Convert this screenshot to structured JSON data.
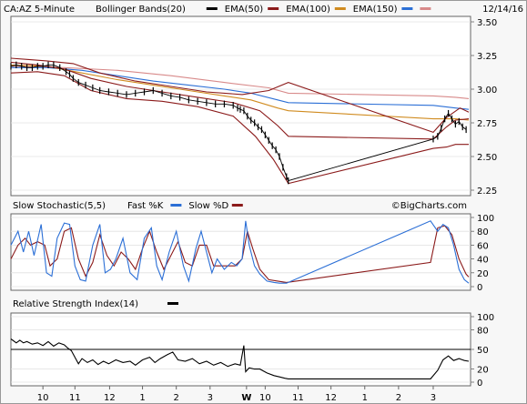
{
  "chart_data": [
    {
      "type": "candlestick",
      "header": {
        "symbol_label": "CA:AZ 5-Minute",
        "date": "12/14/16",
        "legend": [
          {
            "name": "Bollinger Bands(20)",
            "color": "#000000"
          },
          {
            "name": "EMA(50)",
            "color": "#8b1a1a"
          },
          {
            "name": "EMA(100)",
            "color": "#d08b1f"
          },
          {
            "name": "EMA(150)",
            "color": "#2b6fd6"
          },
          {
            "name": "",
            "color": "#d88a8a"
          }
        ]
      },
      "ylim": [
        2.25,
        3.5
      ],
      "yticks": [
        "3.50",
        "3.25",
        "3.00",
        "2.75",
        "2.50",
        "2.25"
      ],
      "ytick_values": [
        3.5,
        3.25,
        3.0,
        2.75,
        2.5,
        2.25
      ],
      "price_close": [
        [
          0,
          3.17
        ],
        [
          6,
          3.18
        ],
        [
          12,
          3.17
        ],
        [
          18,
          3.16
        ],
        [
          24,
          3.16
        ],
        [
          30,
          3.17
        ],
        [
          36,
          3.17
        ],
        [
          42,
          3.18
        ],
        [
          48,
          3.18
        ],
        [
          55,
          3.16
        ],
        [
          62,
          3.13
        ],
        [
          66,
          3.11
        ],
        [
          70,
          3.08
        ],
        [
          76,
          3.05
        ],
        [
          84,
          3.03
        ],
        [
          92,
          3.01
        ],
        [
          100,
          2.99
        ],
        [
          110,
          2.98
        ],
        [
          120,
          2.97
        ],
        [
          130,
          2.96
        ],
        [
          140,
          2.97
        ],
        [
          150,
          2.98
        ],
        [
          160,
          2.99
        ],
        [
          170,
          2.97
        ],
        [
          180,
          2.95
        ],
        [
          190,
          2.94
        ],
        [
          200,
          2.92
        ],
        [
          210,
          2.91
        ],
        [
          220,
          2.9
        ],
        [
          230,
          2.89
        ],
        [
          240,
          2.89
        ],
        [
          250,
          2.88
        ],
        [
          255,
          2.86
        ],
        [
          258,
          2.85
        ],
        [
          262,
          2.84
        ],
        [
          266,
          2.8
        ],
        [
          270,
          2.77
        ],
        [
          274,
          2.75
        ],
        [
          278,
          2.72
        ],
        [
          282,
          2.7
        ],
        [
          286,
          2.66
        ],
        [
          290,
          2.62
        ],
        [
          294,
          2.58
        ],
        [
          298,
          2.55
        ],
        [
          302,
          2.5
        ],
        [
          306,
          2.42
        ],
        [
          310,
          2.35
        ],
        [
          312,
          2.32
        ],
        [
          475,
          2.63
        ],
        [
          480,
          2.65
        ],
        [
          484,
          2.71
        ],
        [
          488,
          2.78
        ],
        [
          492,
          2.82
        ],
        [
          496,
          2.78
        ],
        [
          500,
          2.74
        ],
        [
          504,
          2.76
        ],
        [
          508,
          2.72
        ],
        [
          512,
          2.7
        ]
      ],
      "bollinger_upper": [
        [
          0,
          3.23
        ],
        [
          20,
          3.22
        ],
        [
          40,
          3.21
        ],
        [
          70,
          3.19
        ],
        [
          100,
          3.12
        ],
        [
          140,
          3.06
        ],
        [
          180,
          3.02
        ],
        [
          220,
          2.98
        ],
        [
          260,
          2.96
        ],
        [
          290,
          2.99
        ],
        [
          312,
          3.05
        ],
        [
          475,
          2.68
        ],
        [
          490,
          2.79
        ],
        [
          505,
          2.86
        ],
        [
          515,
          2.83
        ]
      ],
      "bollinger_lower": [
        [
          0,
          3.12
        ],
        [
          30,
          3.13
        ],
        [
          60,
          3.1
        ],
        [
          90,
          2.99
        ],
        [
          130,
          2.93
        ],
        [
          170,
          2.91
        ],
        [
          210,
          2.87
        ],
        [
          250,
          2.8
        ],
        [
          275,
          2.65
        ],
        [
          295,
          2.48
        ],
        [
          312,
          2.3
        ],
        [
          475,
          2.56
        ],
        [
          490,
          2.57
        ],
        [
          500,
          2.59
        ],
        [
          515,
          2.59
        ]
      ],
      "ema50": [
        [
          0,
          3.2
        ],
        [
          30,
          3.18
        ],
        [
          60,
          3.15
        ],
        [
          90,
          3.08
        ],
        [
          130,
          3.02
        ],
        [
          170,
          2.98
        ],
        [
          210,
          2.94
        ],
        [
          250,
          2.9
        ],
        [
          280,
          2.84
        ],
        [
          300,
          2.73
        ],
        [
          312,
          2.65
        ],
        [
          475,
          2.63
        ],
        [
          490,
          2.72
        ],
        [
          500,
          2.77
        ],
        [
          515,
          2.78
        ]
      ],
      "ema100": [
        [
          0,
          3.18
        ],
        [
          40,
          3.17
        ],
        [
          80,
          3.12
        ],
        [
          120,
          3.07
        ],
        [
          160,
          3.03
        ],
        [
          200,
          2.99
        ],
        [
          240,
          2.95
        ],
        [
          270,
          2.92
        ],
        [
          300,
          2.86
        ],
        [
          312,
          2.84
        ],
        [
          475,
          2.78
        ],
        [
          500,
          2.78
        ],
        [
          515,
          2.77
        ]
      ],
      "ema150": [
        [
          0,
          3.16
        ],
        [
          40,
          3.16
        ],
        [
          80,
          3.14
        ],
        [
          120,
          3.1
        ],
        [
          160,
          3.06
        ],
        [
          200,
          3.03
        ],
        [
          240,
          3.0
        ],
        [
          270,
          2.97
        ],
        [
          300,
          2.92
        ],
        [
          312,
          2.9
        ],
        [
          475,
          2.88
        ],
        [
          500,
          2.86
        ],
        [
          515,
          2.85
        ]
      ],
      "ema_pink": [
        [
          0,
          3.17
        ],
        [
          60,
          3.16
        ],
        [
          120,
          3.14
        ],
        [
          180,
          3.1
        ],
        [
          240,
          3.05
        ],
        [
          290,
          3.01
        ],
        [
          312,
          2.97
        ],
        [
          475,
          2.95
        ],
        [
          500,
          2.94
        ],
        [
          515,
          2.93
        ]
      ]
    },
    {
      "type": "line",
      "title": "Slow Stochastic(5,5)",
      "legend": [
        {
          "name": "Fast %K",
          "color": "#2b6fd6"
        },
        {
          "name": "Slow %D",
          "color": "#8b1a1a"
        }
      ],
      "watermark": "©BigCharts.com",
      "ylim": [
        0,
        100
      ],
      "yticks": [
        "100",
        "80",
        "60",
        "40",
        "20",
        "0"
      ],
      "ytick_values": [
        100,
        80,
        60,
        40,
        20,
        0
      ],
      "fast_k": [
        [
          0,
          60
        ],
        [
          8,
          80
        ],
        [
          14,
          50
        ],
        [
          20,
          80
        ],
        [
          26,
          45
        ],
        [
          34,
          90
        ],
        [
          40,
          20
        ],
        [
          46,
          15
        ],
        [
          52,
          70
        ],
        [
          60,
          92
        ],
        [
          66,
          90
        ],
        [
          72,
          30
        ],
        [
          78,
          10
        ],
        [
          84,
          8
        ],
        [
          92,
          60
        ],
        [
          100,
          90
        ],
        [
          106,
          20
        ],
        [
          112,
          25
        ],
        [
          118,
          40
        ],
        [
          126,
          70
        ],
        [
          134,
          20
        ],
        [
          142,
          10
        ],
        [
          150,
          70
        ],
        [
          158,
          85
        ],
        [
          164,
          30
        ],
        [
          170,
          10
        ],
        [
          178,
          50
        ],
        [
          186,
          80
        ],
        [
          194,
          30
        ],
        [
          200,
          8
        ],
        [
          208,
          55
        ],
        [
          214,
          80
        ],
        [
          220,
          50
        ],
        [
          226,
          20
        ],
        [
          232,
          40
        ],
        [
          240,
          25
        ],
        [
          248,
          35
        ],
        [
          254,
          30
        ],
        [
          260,
          40
        ],
        [
          264,
          95
        ],
        [
          268,
          60
        ],
        [
          274,
          30
        ],
        [
          280,
          18
        ],
        [
          288,
          8
        ],
        [
          296,
          6
        ],
        [
          302,
          5
        ],
        [
          310,
          5
        ],
        [
          472,
          95
        ],
        [
          480,
          80
        ],
        [
          486,
          90
        ],
        [
          492,
          85
        ],
        [
          498,
          60
        ],
        [
          504,
          25
        ],
        [
          510,
          10
        ],
        [
          515,
          5
        ]
      ],
      "slow_d": [
        [
          0,
          40
        ],
        [
          8,
          60
        ],
        [
          16,
          70
        ],
        [
          22,
          60
        ],
        [
          30,
          65
        ],
        [
          38,
          60
        ],
        [
          44,
          30
        ],
        [
          52,
          40
        ],
        [
          60,
          80
        ],
        [
          68,
          85
        ],
        [
          76,
          40
        ],
        [
          84,
          15
        ],
        [
          92,
          35
        ],
        [
          100,
          75
        ],
        [
          108,
          45
        ],
        [
          116,
          30
        ],
        [
          124,
          50
        ],
        [
          132,
          40
        ],
        [
          140,
          25
        ],
        [
          148,
          55
        ],
        [
          156,
          80
        ],
        [
          164,
          50
        ],
        [
          172,
          25
        ],
        [
          180,
          45
        ],
        [
          188,
          65
        ],
        [
          196,
          35
        ],
        [
          204,
          30
        ],
        [
          212,
          60
        ],
        [
          220,
          60
        ],
        [
          228,
          30
        ],
        [
          236,
          30
        ],
        [
          244,
          30
        ],
        [
          252,
          30
        ],
        [
          260,
          40
        ],
        [
          266,
          80
        ],
        [
          272,
          55
        ],
        [
          280,
          25
        ],
        [
          290,
          10
        ],
        [
          300,
          8
        ],
        [
          310,
          6
        ],
        [
          472,
          35
        ],
        [
          480,
          85
        ],
        [
          488,
          88
        ],
        [
          496,
          75
        ],
        [
          504,
          40
        ],
        [
          512,
          18
        ],
        [
          515,
          14
        ]
      ]
    },
    {
      "type": "line",
      "title": "Relative Strength Index(14)",
      "legend": [
        {
          "name": "",
          "color": "#000000"
        }
      ],
      "ylim": [
        0,
        100
      ],
      "yticks": [
        "100",
        "80",
        "50",
        "20",
        "0"
      ],
      "ytick_values": [
        100,
        80,
        50,
        20,
        0
      ],
      "reference_lines": [
        50
      ],
      "rsi": [
        [
          0,
          66
        ],
        [
          6,
          60
        ],
        [
          10,
          64
        ],
        [
          14,
          60
        ],
        [
          18,
          62
        ],
        [
          24,
          58
        ],
        [
          30,
          60
        ],
        [
          36,
          56
        ],
        [
          42,
          62
        ],
        [
          48,
          55
        ],
        [
          54,
          60
        ],
        [
          60,
          57
        ],
        [
          64,
          52
        ],
        [
          68,
          48
        ],
        [
          72,
          38
        ],
        [
          76,
          28
        ],
        [
          80,
          36
        ],
        [
          86,
          30
        ],
        [
          92,
          34
        ],
        [
          98,
          27
        ],
        [
          104,
          32
        ],
        [
          110,
          28
        ],
        [
          118,
          34
        ],
        [
          126,
          30
        ],
        [
          134,
          32
        ],
        [
          140,
          26
        ],
        [
          148,
          34
        ],
        [
          156,
          38
        ],
        [
          162,
          30
        ],
        [
          168,
          36
        ],
        [
          176,
          42
        ],
        [
          182,
          46
        ],
        [
          188,
          34
        ],
        [
          196,
          32
        ],
        [
          204,
          36
        ],
        [
          212,
          28
        ],
        [
          220,
          32
        ],
        [
          228,
          26
        ],
        [
          236,
          30
        ],
        [
          244,
          24
        ],
        [
          252,
          28
        ],
        [
          258,
          26
        ],
        [
          262,
          56
        ],
        [
          264,
          16
        ],
        [
          268,
          22
        ],
        [
          274,
          20
        ],
        [
          280,
          20
        ],
        [
          288,
          14
        ],
        [
          296,
          10
        ],
        [
          302,
          8
        ],
        [
          308,
          6
        ],
        [
          312,
          5
        ],
        [
          472,
          5
        ],
        [
          480,
          18
        ],
        [
          486,
          34
        ],
        [
          492,
          40
        ],
        [
          498,
          33
        ],
        [
          504,
          36
        ],
        [
          510,
          33
        ],
        [
          515,
          32
        ]
      ]
    },
    {
      "type": "x_axis",
      "labels": [
        {
          "text": "10",
          "pos": 36
        },
        {
          "text": "11",
          "pos": 72
        },
        {
          "text": "12",
          "pos": 111
        },
        {
          "text": "1",
          "pos": 148
        },
        {
          "text": "2",
          "pos": 186
        },
        {
          "text": "3",
          "pos": 224
        },
        {
          "text": "W",
          "pos": 265
        },
        {
          "text": "10",
          "pos": 286
        },
        {
          "text": "11",
          "pos": 323
        },
        {
          "text": "12",
          "pos": 360
        },
        {
          "text": "1",
          "pos": 398
        },
        {
          "text": "2",
          "pos": 436
        },
        {
          "text": "3",
          "pos": 475
        }
      ],
      "x_range": [
        0,
        517
      ]
    }
  ]
}
